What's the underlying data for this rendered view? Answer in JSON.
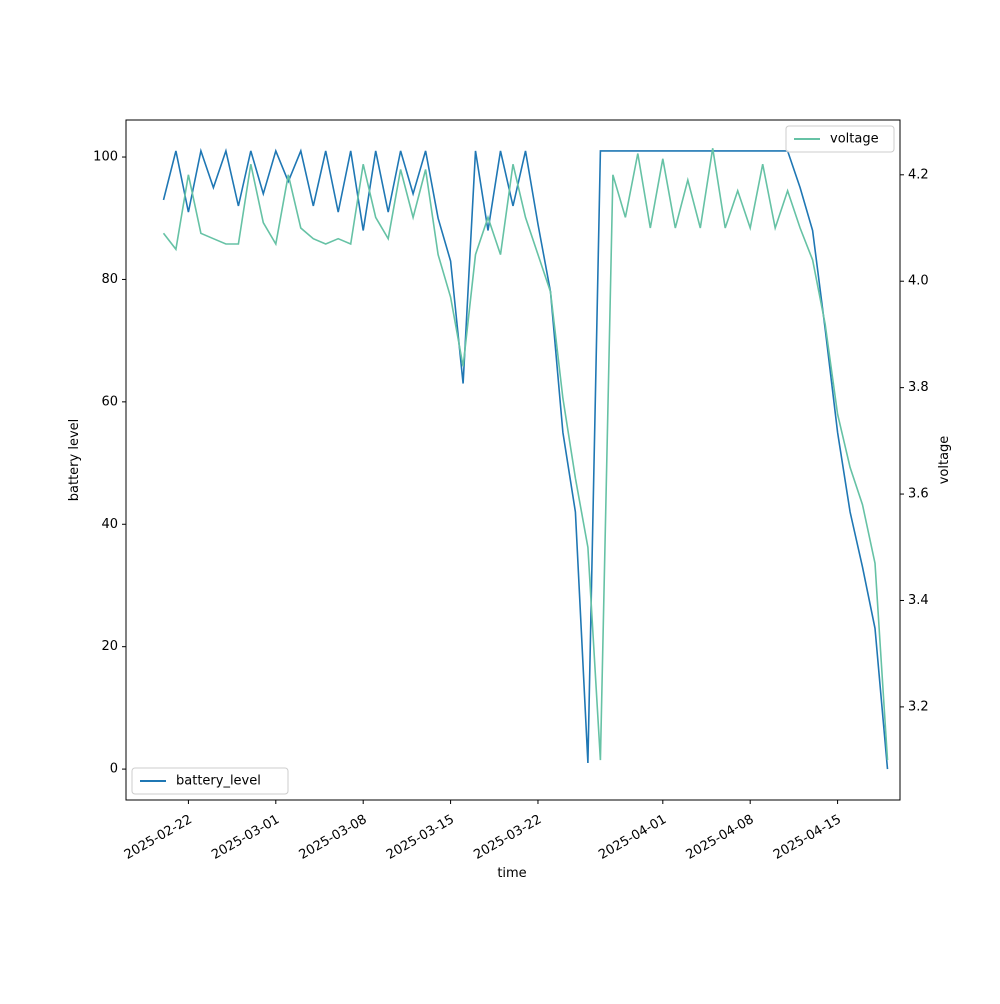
{
  "chart_data": {
    "type": "line",
    "x_label": "time",
    "y_label": "battery level",
    "y2_label": "voltage",
    "x": [
      "2025-02-20",
      "2025-02-21",
      "2025-02-22",
      "2025-02-23",
      "2025-02-24",
      "2025-02-25",
      "2025-02-26",
      "2025-02-27",
      "2025-02-28",
      "2025-03-01",
      "2025-03-02",
      "2025-03-03",
      "2025-03-04",
      "2025-03-05",
      "2025-03-06",
      "2025-03-07",
      "2025-03-08",
      "2025-03-09",
      "2025-03-10",
      "2025-03-11",
      "2025-03-12",
      "2025-03-13",
      "2025-03-14",
      "2025-03-15",
      "2025-03-16",
      "2025-03-17",
      "2025-03-18",
      "2025-03-19",
      "2025-03-20",
      "2025-03-21",
      "2025-03-22",
      "2025-03-23",
      "2025-03-24",
      "2025-03-25",
      "2025-03-26",
      "2025-03-27",
      "2025-03-28",
      "2025-03-29",
      "2025-03-30",
      "2025-03-31",
      "2025-04-01",
      "2025-04-02",
      "2025-04-03",
      "2025-04-04",
      "2025-04-05",
      "2025-04-06",
      "2025-04-07",
      "2025-04-08",
      "2025-04-09",
      "2025-04-10",
      "2025-04-11",
      "2025-04-12",
      "2025-04-13",
      "2025-04-14",
      "2025-04-15",
      "2025-04-16",
      "2025-04-17",
      "2025-04-18",
      "2025-04-19"
    ],
    "series": [
      {
        "name": "battery_level",
        "color": "#1f77b4",
        "values": [
          93,
          101,
          91,
          101,
          95,
          101,
          92,
          101,
          94,
          101,
          96,
          101,
          92,
          101,
          91,
          101,
          88,
          101,
          91,
          101,
          94,
          101,
          90,
          83,
          63,
          101,
          88,
          101,
          92,
          101,
          89,
          78,
          55,
          42,
          1,
          101,
          101,
          101,
          101,
          101,
          101,
          101,
          101,
          101,
          101,
          101,
          101,
          101,
          101,
          101,
          101,
          95,
          88,
          72,
          55,
          42,
          33,
          23,
          0
        ]
      },
      {
        "name": "voltage",
        "color": "#66c2a5",
        "axis": "y2",
        "values": [
          4.09,
          4.06,
          4.2,
          4.09,
          4.08,
          4.07,
          4.07,
          4.22,
          4.11,
          4.07,
          4.2,
          4.1,
          4.08,
          4.07,
          4.08,
          4.07,
          4.22,
          4.12,
          4.08,
          4.21,
          4.12,
          4.21,
          4.05,
          3.97,
          3.84,
          4.05,
          4.12,
          4.05,
          4.22,
          4.12,
          4.05,
          3.98,
          3.78,
          3.63,
          3.5,
          3.1,
          4.2,
          4.12,
          4.24,
          4.1,
          4.23,
          4.1,
          4.19,
          4.1,
          4.25,
          4.1,
          4.17,
          4.1,
          4.22,
          4.1,
          4.17,
          4.1,
          4.04,
          3.92,
          3.75,
          3.65,
          3.58,
          3.47,
          3.1
        ]
      }
    ],
    "xlim": [
      "2025-02-17",
      "2025-04-20"
    ],
    "xticks": [
      "2025-02-22",
      "2025-03-01",
      "2025-03-08",
      "2025-03-15",
      "2025-03-22",
      "2025-04-01",
      "2025-04-08",
      "2025-04-15"
    ],
    "ylim": [
      -5.05,
      106.05
    ],
    "yticks": [
      0,
      20,
      40,
      60,
      80,
      100
    ],
    "y2lim": [
      3.025,
      4.303
    ],
    "y2ticks": [
      3.2,
      3.4,
      3.6,
      3.8,
      {
        "value": 4.0,
        "label": "4.0"
      },
      4.2
    ],
    "legend": [
      "lower left",
      "upper right"
    ]
  }
}
